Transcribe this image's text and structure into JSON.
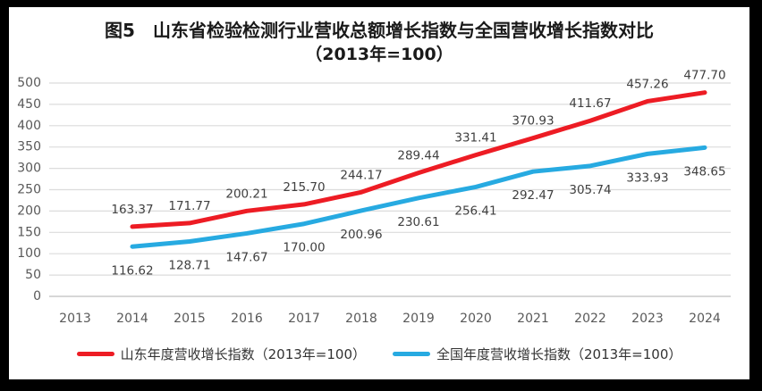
{
  "title": {
    "line1": "图5　山东省检验检测行业营收总额增长指数与全国营收增长指数对比",
    "line2": "（2013年=100）"
  },
  "chart_data": {
    "type": "line",
    "title": "图5　山东省检验检测行业营收总额增长指数与全国营收增长指数对比",
    "subtitle": "（2013年=100）",
    "categories": [
      "2013",
      "2014",
      "2015",
      "2016",
      "2017",
      "2018",
      "2019",
      "2020",
      "2021",
      "2022",
      "2023",
      "2024"
    ],
    "series": [
      {
        "name": "山东年度营收增长指数（2013年=100）",
        "color": "#ED1C24",
        "start_index": 1,
        "label_position": "above",
        "values": [
          163.37,
          171.77,
          200.21,
          215.7,
          244.17,
          289.44,
          331.41,
          370.93,
          411.67,
          457.26,
          477.7
        ]
      },
      {
        "name": "全国年度营收增长指数（2013年=100）",
        "color": "#27AAE1",
        "start_index": 1,
        "label_position": "below",
        "values": [
          116.62,
          128.71,
          147.67,
          170.0,
          200.96,
          230.61,
          256.41,
          292.47,
          305.74,
          333.93,
          348.65
        ]
      }
    ],
    "ylim": [
      0,
      500
    ],
    "ytick_step": 50,
    "grid": true,
    "legend_position": "bottom",
    "value_decimals": 2
  },
  "colors": {
    "gridline": "#DCDCDC",
    "axis_line": "#BFBFBF",
    "tick_text": "#595959",
    "data_label_text": "#404040",
    "title_text": "#1A1A1A",
    "legend_text": "#333333",
    "frame": "#000000",
    "background": "#FFFFFF"
  }
}
